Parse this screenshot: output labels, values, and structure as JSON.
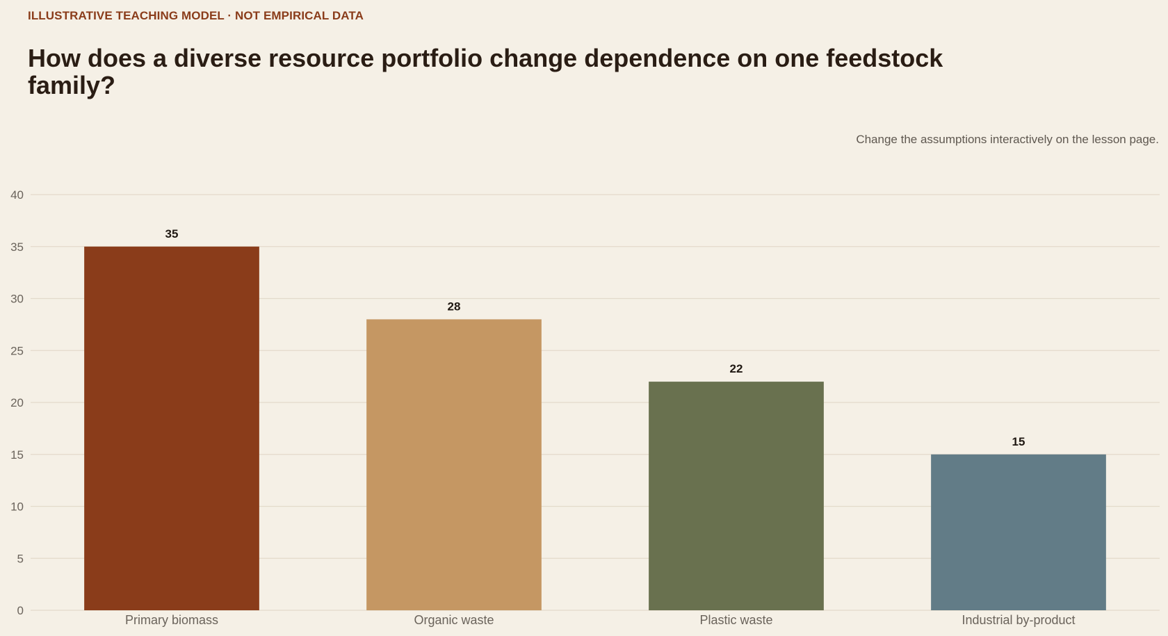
{
  "header": {
    "eyebrow": "ILLUSTRATIVE TEACHING MODEL · NOT EMPIRICAL DATA",
    "title": "How does a diverse resource portfolio change dependence on one feedstock family?",
    "note": "Change the assumptions interactively on the lesson page."
  },
  "chart_data": {
    "type": "bar",
    "title": "How does a diverse resource portfolio change dependence on one feedstock family?",
    "xlabel": "",
    "ylabel": "",
    "categories": [
      "Primary biomass",
      "Organic waste",
      "Plastic waste",
      "Industrial by-product"
    ],
    "values": [
      35,
      28,
      22,
      15
    ],
    "data_labels": [
      "35",
      "28",
      "22",
      "15"
    ],
    "colors": [
      "#8a3c1a",
      "#c59763",
      "#69714f",
      "#627c87"
    ],
    "ylim": [
      0,
      40
    ],
    "yticks": [
      0,
      5,
      10,
      15,
      20,
      25,
      30,
      35,
      40
    ],
    "grid": true,
    "legend": "none"
  },
  "colors": {
    "background": "#f5f0e6",
    "grid": "#e3dacb",
    "accent": "#8a3c1a"
  }
}
